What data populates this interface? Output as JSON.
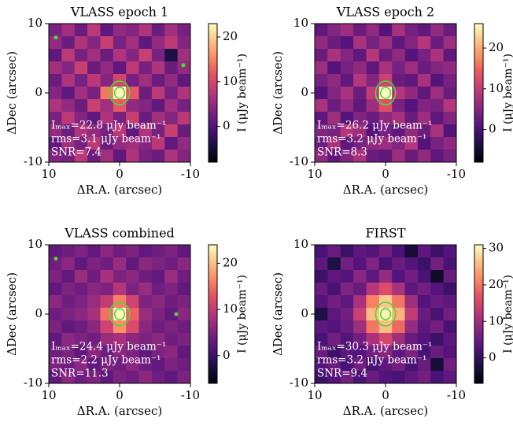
{
  "chart_data": [
    {
      "type": "heatmap",
      "title": "VLASS epoch 1",
      "xlabel": "ΔR.A. (arcsec)",
      "ylabel": "ΔDec (arcsec)",
      "xlim": [
        10,
        -10
      ],
      "ylim": [
        -10,
        10
      ],
      "xticks": [
        10,
        0,
        -10
      ],
      "yticks": [
        10,
        0,
        -10
      ],
      "colormap": "magma",
      "clim": [
        -8,
        23
      ],
      "cticks": [
        0,
        10,
        20
      ],
      "colorbar_label": "I (μJy beam⁻¹)",
      "contour_color": "#4cd93c",
      "annotations": [
        "Iₘₐₓ=22.8 μJy beam⁻¹",
        "rms=3.1 μJy beam⁻¹",
        "SNR=7.4"
      ],
      "markers": [
        {
          "x": 9,
          "y": 8
        },
        {
          "x": -9,
          "y": 4
        }
      ],
      "values": [
        [
          3,
          6,
          2,
          8,
          1,
          5,
          4,
          7,
          2,
          6,
          3
        ],
        [
          5,
          2,
          7,
          4,
          9,
          3,
          6,
          1,
          5,
          8,
          4
        ],
        [
          1,
          8,
          3,
          6,
          2,
          7,
          4,
          9,
          3,
          -4,
          6
        ],
        [
          6,
          4,
          9,
          2,
          5,
          1,
          8,
          3,
          7,
          2,
          5
        ],
        [
          2,
          7,
          3,
          8,
          4,
          10,
          3,
          6,
          2,
          5,
          1
        ],
        [
          4,
          1,
          6,
          3,
          14,
          22.8,
          12,
          2,
          8,
          3,
          7
        ],
        [
          7,
          5,
          2,
          9,
          6,
          12,
          5,
          4,
          1,
          6,
          3
        ],
        [
          3,
          8,
          4,
          1,
          7,
          3,
          9,
          2,
          6,
          4,
          8
        ],
        [
          5,
          2,
          7,
          5,
          3,
          8,
          1,
          7,
          3,
          9,
          2
        ],
        [
          1,
          6,
          3,
          8,
          2,
          5,
          6,
          4,
          8,
          1,
          5
        ],
        [
          4,
          3,
          8,
          2,
          6,
          1,
          7,
          3,
          2,
          7,
          4
        ]
      ]
    },
    {
      "type": "heatmap",
      "title": "VLASS epoch 2",
      "xlabel": "ΔR.A. (arcsec)",
      "ylabel": "ΔDec (arcsec)",
      "xlim": [
        10,
        -10
      ],
      "ylim": [
        -10,
        10
      ],
      "xticks": [
        10,
        0,
        -10
      ],
      "yticks": [
        10,
        0,
        -10
      ],
      "colormap": "magma",
      "clim": [
        -8,
        26
      ],
      "cticks": [
        0,
        10,
        20
      ],
      "colorbar_label": "I (μJy beam⁻¹)",
      "contour_color": "#4cd93c",
      "annotations": [
        "Iₘₐₓ=26.2 μJy beam⁻¹",
        "rms=3.2 μJy beam⁻¹",
        "SNR=8.3"
      ],
      "markers": [],
      "values": [
        [
          2,
          5,
          7,
          3,
          6,
          1,
          8,
          4,
          2,
          6,
          3
        ],
        [
          6,
          3,
          1,
          8,
          4,
          7,
          2,
          5,
          9,
          3,
          7
        ],
        [
          3,
          8,
          5,
          2,
          9,
          3,
          6,
          1,
          4,
          8,
          2
        ],
        [
          7,
          1,
          4,
          6,
          2,
          8,
          4,
          7,
          3,
          5,
          6
        ],
        [
          4,
          6,
          2,
          9,
          5,
          11,
          3,
          2,
          8,
          1,
          4
        ],
        [
          1,
          5,
          8,
          3,
          10,
          26.2,
          9,
          6,
          2,
          7,
          3
        ],
        [
          8,
          3,
          6,
          2,
          7,
          13,
          4,
          1,
          5,
          4,
          9
        ],
        [
          2,
          7,
          1,
          5,
          3,
          6,
          8,
          3,
          7,
          2,
          5
        ],
        [
          5,
          4,
          9,
          7,
          1,
          4,
          2,
          6,
          3,
          8,
          1
        ],
        [
          3,
          8,
          2,
          4,
          6,
          7,
          5,
          9,
          1,
          4,
          6
        ],
        [
          6,
          2,
          5,
          8,
          3,
          2,
          7,
          3,
          6,
          2,
          4
        ]
      ]
    },
    {
      "type": "heatmap",
      "title": "VLASS combined",
      "xlabel": "ΔR.A. (arcsec)",
      "ylabel": "ΔDec (arcsec)",
      "xlim": [
        10,
        -10
      ],
      "ylim": [
        -10,
        10
      ],
      "xticks": [
        10,
        0,
        -10
      ],
      "yticks": [
        10,
        0,
        -10
      ],
      "colormap": "magma",
      "clim": [
        -6,
        24
      ],
      "cticks": [
        0,
        10,
        20
      ],
      "colorbar_label": "I (μJy beam⁻¹)",
      "contour_color": "#4cd93c",
      "annotations": [
        "Iₘₐₓ=24.4 μJy beam⁻¹",
        "rms=2.2 μJy beam⁻¹",
        "SNR=11.3"
      ],
      "markers": [
        {
          "x": 9,
          "y": 8
        },
        {
          "x": -8,
          "y": 0
        }
      ],
      "values": [
        [
          3,
          4,
          5,
          3,
          6,
          4,
          5,
          3,
          4,
          5,
          3
        ],
        [
          4,
          6,
          3,
          5,
          4,
          7,
          3,
          6,
          5,
          4,
          6
        ],
        [
          5,
          3,
          7,
          4,
          8,
          5,
          6,
          4,
          3,
          7,
          4
        ],
        [
          3,
          5,
          4,
          6,
          5,
          9,
          5,
          7,
          4,
          5,
          3
        ],
        [
          6,
          4,
          5,
          7,
          10,
          16,
          11,
          5,
          6,
          4,
          5
        ],
        [
          4,
          5,
          6,
          8,
          15,
          24.4,
          14,
          7,
          5,
          3,
          6
        ],
        [
          5,
          3,
          4,
          6,
          11,
          17,
          12,
          6,
          4,
          5,
          4
        ],
        [
          3,
          6,
          5,
          4,
          7,
          8,
          6,
          5,
          6,
          4,
          5
        ],
        [
          4,
          5,
          3,
          6,
          4,
          6,
          5,
          3,
          5,
          6,
          3
        ],
        [
          5,
          4,
          6,
          3,
          5,
          4,
          6,
          4,
          3,
          5,
          4
        ],
        [
          3,
          6,
          4,
          5,
          3,
          5,
          4,
          6,
          4,
          3,
          5
        ]
      ]
    },
    {
      "type": "heatmap",
      "title": "FIRST",
      "xlabel": "ΔR.A. (arcsec)",
      "ylabel": "ΔDec (arcsec)",
      "xlim": [
        10,
        -10
      ],
      "ylim": [
        -10,
        10
      ],
      "xticks": [
        10,
        0,
        -10
      ],
      "yticks": [
        10,
        0,
        -10
      ],
      "colormap": "magma",
      "clim": [
        -7,
        31
      ],
      "cticks": [
        0,
        10,
        20,
        30
      ],
      "colorbar_label": "I (μJy beam⁻¹)",
      "contour_color": "#4cd93c",
      "annotations": [
        "Iₘₐₓ=30.3 μJy beam⁻¹",
        "rms=3.2 μJy beam⁻¹",
        "SNR=9.4"
      ],
      "markers": [],
      "values": [
        [
          2,
          5,
          1,
          4,
          3,
          6,
          2,
          -3,
          4,
          1,
          3
        ],
        [
          4,
          -2,
          6,
          3,
          7,
          2,
          5,
          3,
          1,
          6,
          2
        ],
        [
          1,
          4,
          3,
          8,
          4,
          9,
          3,
          6,
          2,
          -4,
          5
        ],
        [
          5,
          2,
          7,
          5,
          12,
          16,
          11,
          4,
          6,
          3,
          1
        ],
        [
          3,
          6,
          4,
          11,
          21,
          27,
          20,
          10,
          3,
          5,
          4
        ],
        [
          -2,
          4,
          6,
          14,
          26,
          30.3,
          25,
          13,
          5,
          2,
          6
        ],
        [
          4,
          3,
          5,
          10,
          20,
          26,
          19,
          9,
          4,
          6,
          2
        ],
        [
          2,
          6,
          3,
          6,
          11,
          15,
          10,
          5,
          3,
          1,
          4
        ],
        [
          5,
          1,
          4,
          3,
          6,
          8,
          4,
          7,
          2,
          5,
          3
        ],
        [
          3,
          5,
          2,
          6,
          2,
          4,
          6,
          2,
          5,
          -3,
          6
        ],
        [
          1,
          3,
          6,
          2,
          5,
          3,
          2,
          4,
          6,
          2,
          4
        ]
      ]
    }
  ]
}
